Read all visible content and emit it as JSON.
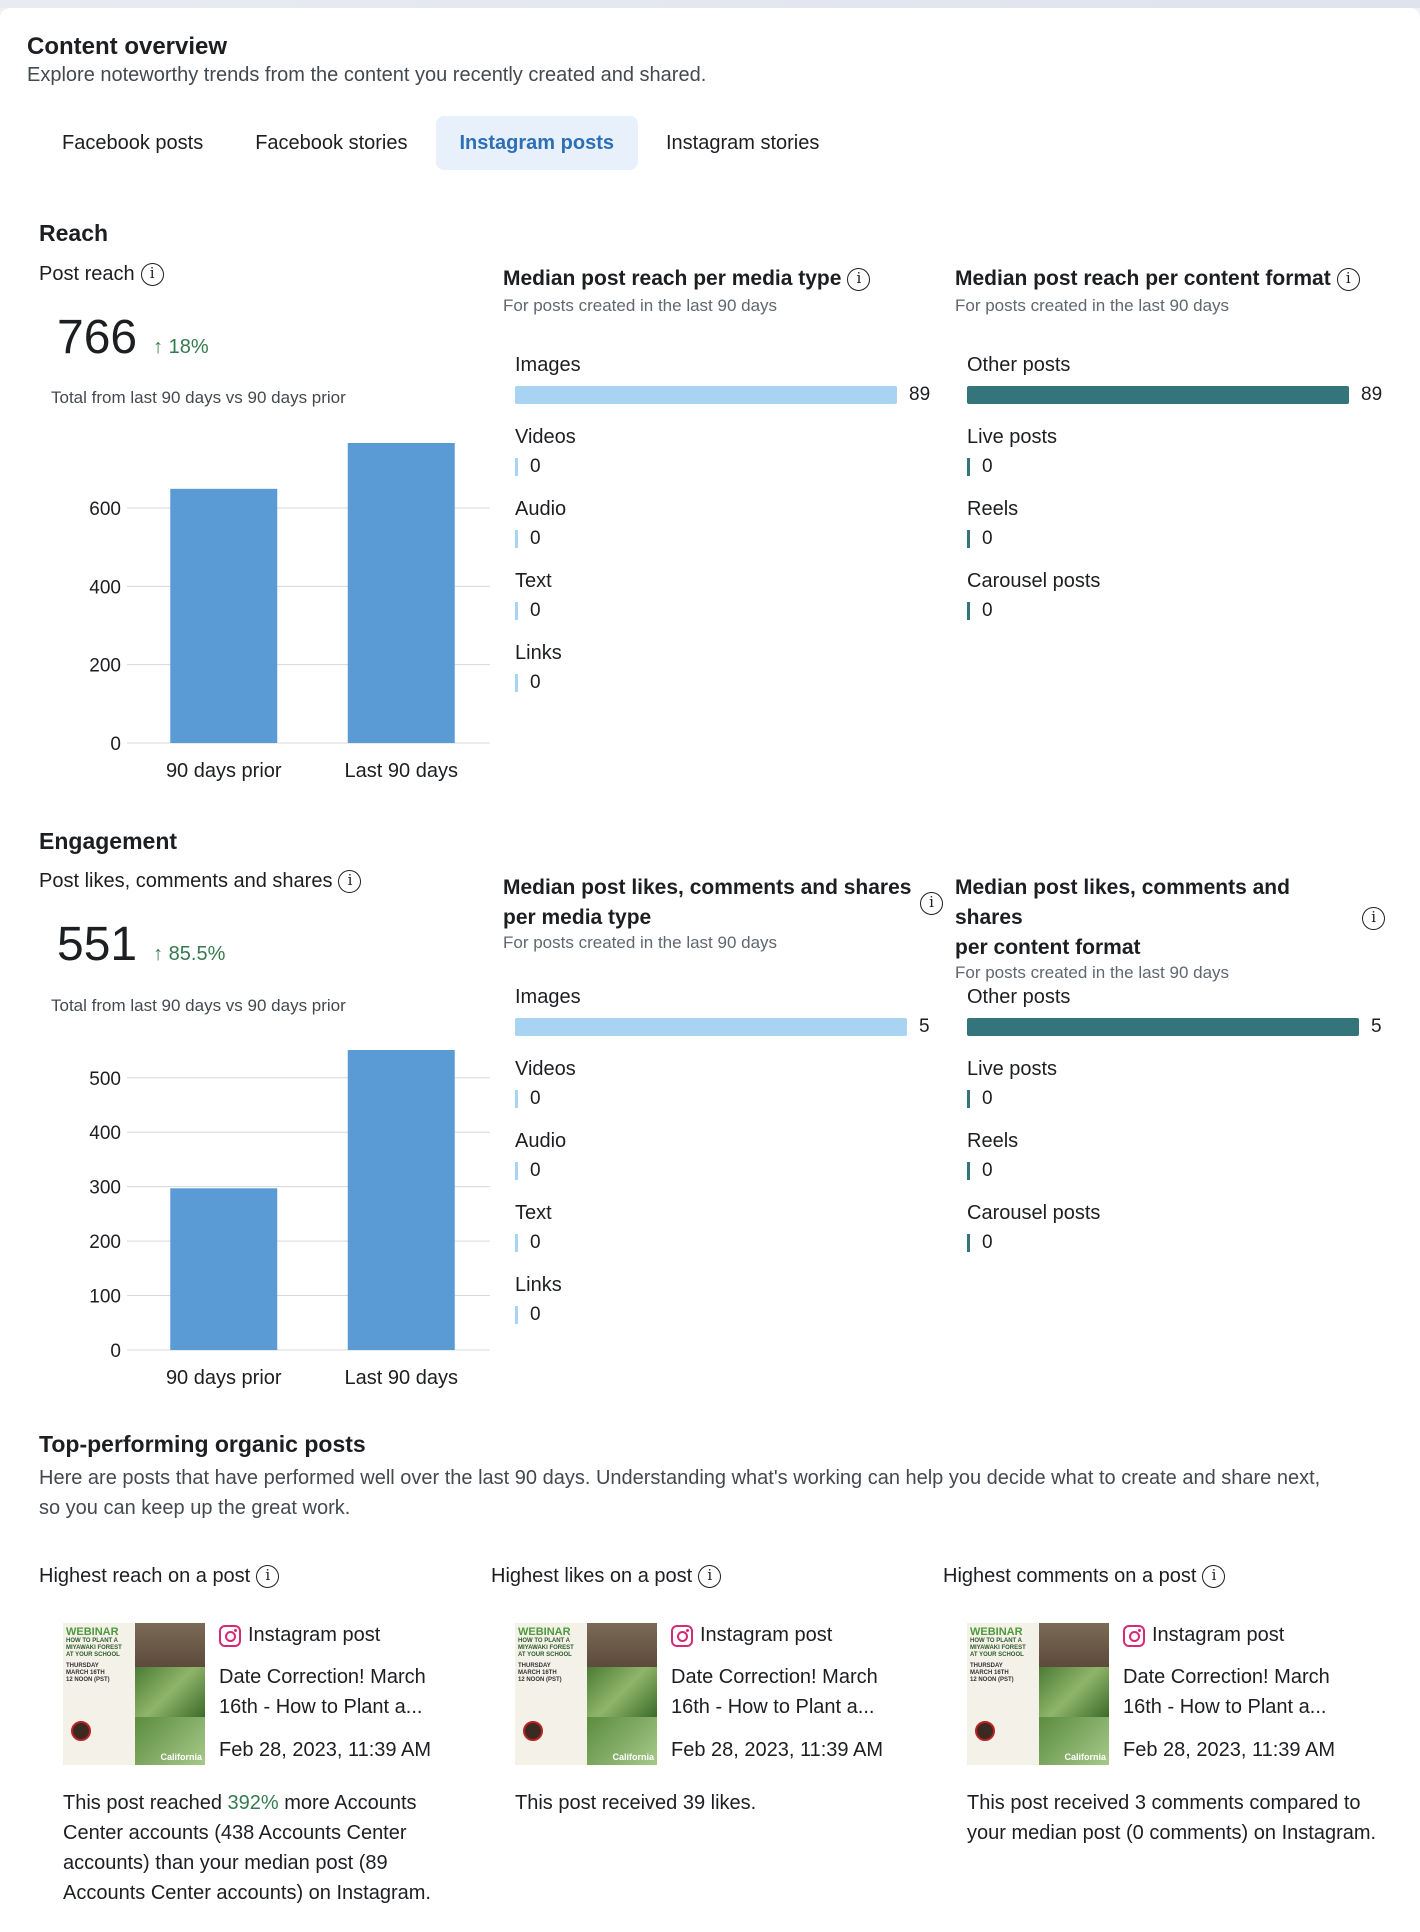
{
  "header": {
    "title": "Content overview",
    "subtitle": "Explore noteworthy trends from the content you recently created and shared."
  },
  "tabs": [
    {
      "label": "Facebook posts",
      "active": false
    },
    {
      "label": "Facebook stories",
      "active": false
    },
    {
      "label": "Instagram posts",
      "active": true
    },
    {
      "label": "Instagram stories",
      "active": false
    }
  ],
  "reach": {
    "section_title": "Reach",
    "metric_label": "Post reach",
    "value": "766",
    "delta": "18%",
    "note": "Total from last 90 days vs 90 days prior",
    "media_type": {
      "title": "Median post reach per media type",
      "subtitle": "For posts created in the last 90 days",
      "color": "#a9d3f2",
      "items": [
        {
          "label": "Images",
          "value": 89
        },
        {
          "label": "Videos",
          "value": 0
        },
        {
          "label": "Audio",
          "value": 0
        },
        {
          "label": "Text",
          "value": 0
        },
        {
          "label": "Links",
          "value": 0
        }
      ]
    },
    "content_format": {
      "title": "Median post reach per content format",
      "subtitle": "For posts created in the last 90 days",
      "color": "#33757a",
      "items": [
        {
          "label": "Other posts",
          "value": 89
        },
        {
          "label": "Live posts",
          "value": 0
        },
        {
          "label": "Reels",
          "value": 0
        },
        {
          "label": "Carousel posts",
          "value": 0
        }
      ]
    }
  },
  "engagement": {
    "section_title": "Engagement",
    "metric_label": "Post likes, comments and shares",
    "value": "551",
    "delta": "85.5%",
    "note": "Total from last 90 days vs 90 days prior",
    "media_type": {
      "title_line1": "Median post likes, comments and shares",
      "title_line2": "per media type",
      "subtitle": "For posts created in the last 90 days",
      "color": "#a9d3f2",
      "items": [
        {
          "label": "Images",
          "value": 5
        },
        {
          "label": "Videos",
          "value": 0
        },
        {
          "label": "Audio",
          "value": 0
        },
        {
          "label": "Text",
          "value": 0
        },
        {
          "label": "Links",
          "value": 0
        }
      ]
    },
    "content_format": {
      "title_line1": "Median post likes, comments and shares",
      "title_line2": "per content format",
      "subtitle": "For posts created in the last 90 days",
      "color": "#33757a",
      "items": [
        {
          "label": "Other posts",
          "value": 5
        },
        {
          "label": "Live posts",
          "value": 0
        },
        {
          "label": "Reels",
          "value": 0
        },
        {
          "label": "Carousel posts",
          "value": 0
        }
      ]
    }
  },
  "chart_data": [
    {
      "type": "bar",
      "categories": [
        "90 days prior",
        "Last 90 days"
      ],
      "values": [
        649,
        766
      ],
      "ylim": [
        0,
        766
      ],
      "yticks": [
        0,
        200,
        400,
        600
      ],
      "color": "#5b9bd5",
      "grid": true
    },
    {
      "type": "bar",
      "categories": [
        "90 days prior",
        "Last 90 days"
      ],
      "values": [
        297,
        551
      ],
      "ylim": [
        0,
        551
      ],
      "yticks": [
        0,
        100,
        200,
        300,
        400,
        500
      ],
      "color": "#5b9bd5",
      "grid": true
    }
  ],
  "top_posts": {
    "title": "Top-performing organic posts",
    "description_line1": "Here are posts that have performed well over the last 90 days. Understanding what's working can help you decide what to create and share next,",
    "description_line2": "so you can keep up the great work.",
    "columns": [
      {
        "heading": "Highest reach on a post",
        "post_type": "Instagram post",
        "caption_line1": "Date Correction! March",
        "caption_line2": "16th - How to Plant a...",
        "date": "Feb 28, 2023, 11:39 AM",
        "desc_pre": "This post reached ",
        "desc_highlight": "392%",
        "desc_post": " more Accounts Center accounts (438 Accounts Center accounts) than your median post (89 Accounts Center accounts) on Instagram."
      },
      {
        "heading": "Highest likes on a post",
        "post_type": "Instagram post",
        "caption_line1": "Date Correction! March",
        "caption_line2": "16th - How to Plant a...",
        "date": "Feb 28, 2023, 11:39 AM",
        "desc_pre": "This post received 39 likes.",
        "desc_highlight": "",
        "desc_post": ""
      },
      {
        "heading": "Highest comments on a post",
        "post_type": "Instagram post",
        "caption_line1": "Date Correction! March",
        "caption_line2": "16th - How to Plant a...",
        "date": "Feb 28, 2023, 11:39 AM",
        "desc_pre": "This post received 3 comments compared to your median post (0 comments) on Instagram.",
        "desc_highlight": "",
        "desc_post": ""
      }
    ],
    "thumbnail_text": {
      "badge": "WEBINAR",
      "line1": "HOW TO PLANT A",
      "line2": "MIYAWAKI FOREST",
      "line3": "AT YOUR SCHOOL",
      "line4": "THURSDAY",
      "line5": "MARCH 16TH",
      "line6": "12 NOON (PST)",
      "brand": "California"
    }
  }
}
